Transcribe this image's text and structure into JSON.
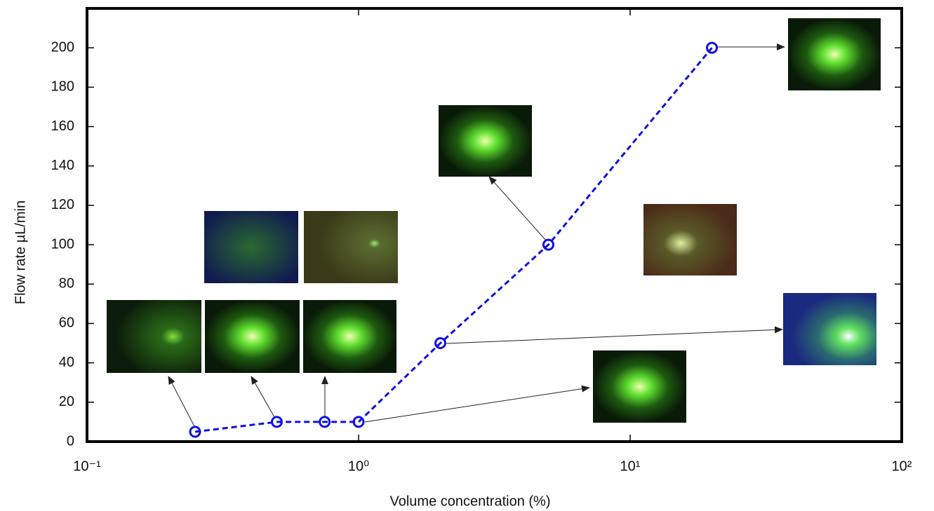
{
  "chart_data": {
    "type": "line",
    "x_label": "Volume concentration (%)",
    "y_label": "Flow rate µL/min",
    "x_scale": "log",
    "x": [
      0.25,
      0.5,
      0.75,
      1,
      2,
      5,
      20
    ],
    "series": [
      {
        "color": "#1010e0",
        "values": [
          5,
          10,
          10,
          10,
          50,
          100,
          200
        ]
      }
    ],
    "xlim": [
      0.1,
      100
    ],
    "xticks": [
      {
        "value": 0.1,
        "label": "10⁻¹"
      },
      {
        "value": 1,
        "label": "10⁰"
      },
      {
        "value": 10,
        "label": "10¹"
      },
      {
        "value": 100,
        "label": "10²"
      }
    ],
    "ylim": [
      0,
      220
    ],
    "yticks": [
      0,
      20,
      40,
      60,
      80,
      100,
      120,
      140,
      160,
      180,
      200
    ]
  }
}
